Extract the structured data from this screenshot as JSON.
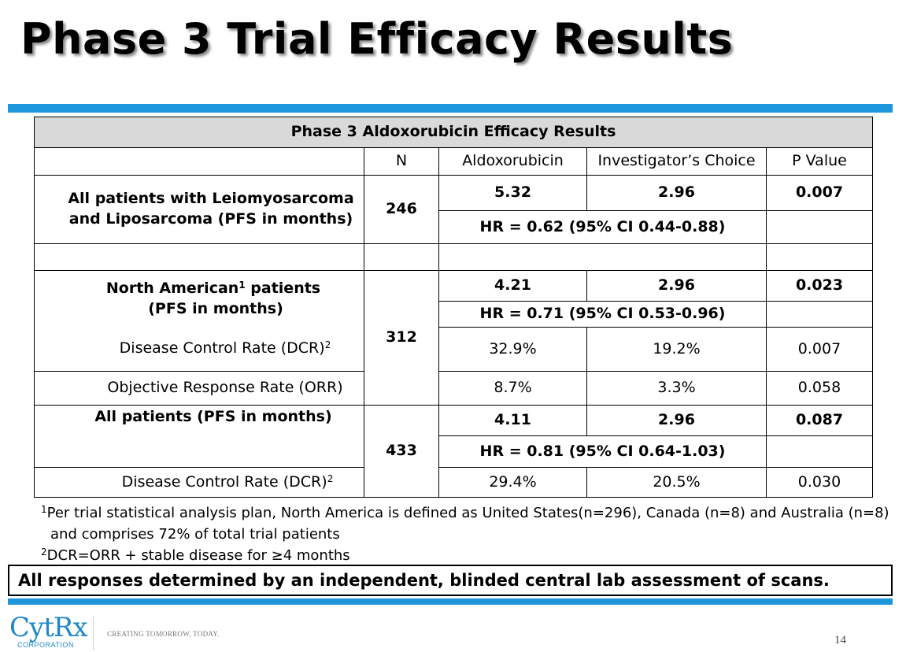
{
  "slide": {
    "title": "Phase 3 Trial Efficacy Results",
    "page_number": "14",
    "accent_color": "#1e96dc"
  },
  "table": {
    "caption": "Phase 3 Aldoxorubicin Efficacy Results",
    "headers": {
      "n": "N",
      "aldoxorubicin": "Aldoxorubicin",
      "investigator": "Investigator’s Choice",
      "p_value": "P Value"
    },
    "group1": {
      "label_line1": "All patients with Leiomyosarcoma",
      "label_line2": "and Liposarcoma (PFS in months)",
      "n": "246",
      "aldox": "5.32",
      "inv": "2.96",
      "p": "0.007",
      "hr": "HR = 0.62 (95% CI 0.44-0.88)"
    },
    "group2": {
      "label_pre": "North American",
      "label_sup": "1",
      "label_post": " patients",
      "label_line2": "(PFS in months)",
      "n": "312",
      "aldox": "4.21",
      "inv": "2.96",
      "p": "0.023",
      "hr": "HR = 0.71 (95% CI 0.53-0.96)",
      "dcr_label": "Disease Control Rate (DCR)",
      "dcr_sup": "2",
      "dcr_aldox": "32.9%",
      "dcr_inv": "19.2%",
      "dcr_p": "0.007",
      "orr_label": "Objective Response Rate (ORR)",
      "orr_aldox": "8.7%",
      "orr_inv": "3.3%",
      "orr_p": "0.058"
    },
    "group3": {
      "label": "All patients (PFS in months)",
      "n": "433",
      "aldox": "4.11",
      "inv": "2.96",
      "p": "0.087",
      "hr": "HR = 0.81 (95% CI 0.64-1.03)",
      "dcr_label": "Disease Control Rate (DCR)",
      "dcr_sup": "2",
      "dcr_aldox": "29.4%",
      "dcr_inv": "20.5%",
      "dcr_p": "0.030"
    }
  },
  "footnotes": {
    "fn1_sup": "1",
    "fn1_line1": "Per trial statistical analysis plan, North America is defined as United States(n=296), Canada (n=8) and Australia (n=8)",
    "fn1_line2": "and comprises 72% of total trial patients",
    "fn2_sup": "2",
    "fn2": "DCR=ORR + stable disease for ≥4 months"
  },
  "callout": "All responses determined by an independent, blinded central lab assessment of scans.",
  "footer": {
    "logo_text": "CytRx",
    "logo_sub": "CORPORATION",
    "tagline": "CREATING TOMORROW, TODAY."
  }
}
